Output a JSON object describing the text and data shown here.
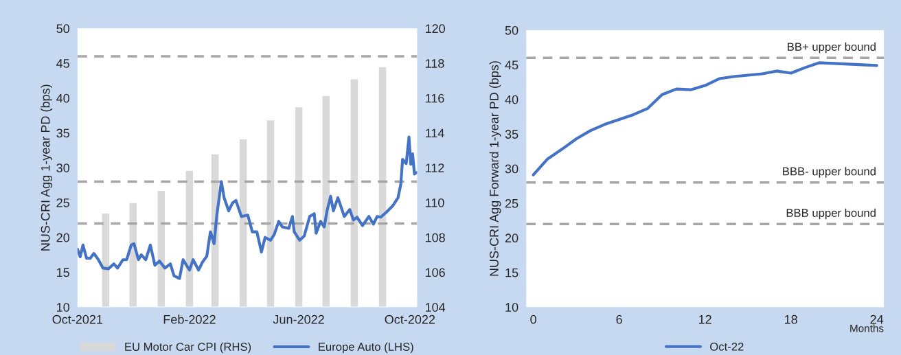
{
  "chart_data": [
    {
      "type": "line",
      "ylabel": "NUS-CRI Agg 1-year PD (bps)",
      "xlim": [
        "2021-10-01",
        "2022-10-09"
      ],
      "xticks": [
        {
          "value": "2021-10-01",
          "label": "Oct-2021"
        },
        {
          "value": "2022-02-01",
          "label": "Feb-2022"
        },
        {
          "value": "2022-06-01",
          "label": "Jun-2022"
        },
        {
          "value": "2022-10-01",
          "label": "Oct-2022"
        }
      ],
      "ylim": [
        10,
        50
      ],
      "yticks": [
        10,
        15,
        20,
        25,
        30,
        35,
        40,
        45,
        50
      ],
      "y2lim": [
        104,
        120
      ],
      "y2ticks": [
        104,
        106,
        108,
        110,
        112,
        114,
        116,
        118,
        120
      ],
      "legend": "bottom",
      "series": [
        {
          "name": "EU Motor Car CPI (RHS)",
          "type": "bar",
          "axis": "y2",
          "color": "#d9d9d9",
          "x": [
            "2021-11-01",
            "2021-12-01",
            "2022-01-01",
            "2022-02-01",
            "2022-03-01",
            "2022-04-01",
            "2022-05-01",
            "2022-06-01",
            "2022-07-01",
            "2022-08-01",
            "2022-09-01"
          ],
          "values": [
            109.4,
            110.0,
            110.7,
            111.85,
            112.8,
            113.65,
            114.75,
            115.5,
            116.15,
            117.1,
            117.8
          ]
        },
        {
          "name": "Europe Auto (LHS)",
          "type": "line",
          "axis": "y",
          "color": "#4472c4",
          "x": [
            "2021-10-01",
            "2021-10-04",
            "2021-10-07",
            "2021-10-11",
            "2021-10-15",
            "2021-10-19",
            "2021-10-24",
            "2021-10-29",
            "2021-11-04",
            "2021-11-10",
            "2021-11-14",
            "2021-11-20",
            "2021-11-24",
            "2021-11-29",
            "2021-12-02",
            "2021-12-07",
            "2021-12-10",
            "2021-12-15",
            "2021-12-20",
            "2021-12-25",
            "2021-12-30",
            "2022-01-05",
            "2022-01-11",
            "2022-01-15",
            "2022-01-21",
            "2022-01-25",
            "2022-02-01",
            "2022-02-05",
            "2022-02-11",
            "2022-02-15",
            "2022-02-20",
            "2022-02-24",
            "2022-02-28",
            "2022-03-03",
            "2022-03-08",
            "2022-03-11",
            "2022-03-16",
            "2022-03-20",
            "2022-03-24",
            "2022-03-30",
            "2022-04-06",
            "2022-04-11",
            "2022-04-16",
            "2022-04-21",
            "2022-04-25",
            "2022-05-01",
            "2022-05-05",
            "2022-05-10",
            "2022-05-14",
            "2022-05-21",
            "2022-05-25",
            "2022-05-27",
            "2022-06-02",
            "2022-06-07",
            "2022-06-13",
            "2022-06-18",
            "2022-06-20",
            "2022-06-25",
            "2022-06-29",
            "2022-07-02",
            "2022-07-06",
            "2022-07-09",
            "2022-07-14",
            "2022-07-21",
            "2022-07-27",
            "2022-07-31",
            "2022-08-04",
            "2022-08-10",
            "2022-08-17",
            "2022-08-22",
            "2022-08-26",
            "2022-08-30",
            "2022-09-05",
            "2022-09-12",
            "2022-09-18",
            "2022-09-21",
            "2022-09-23",
            "2022-09-27",
            "2022-09-30",
            "2022-10-02",
            "2022-10-04",
            "2022-10-06",
            "2022-10-08"
          ],
          "values": [
            18.3,
            17.2,
            18.9,
            17.0,
            17.0,
            17.7,
            16.8,
            15.6,
            15.5,
            16.2,
            15.6,
            16.8,
            16.8,
            18.9,
            19.1,
            16.8,
            17.5,
            16.8,
            18.9,
            16.0,
            16.6,
            15.6,
            16.2,
            14.5,
            14.1,
            16.8,
            15.3,
            16.8,
            15.3,
            16.4,
            17.3,
            20.8,
            19.1,
            23.2,
            28.0,
            25.7,
            23.8,
            24.9,
            25.3,
            23.0,
            23.2,
            20.8,
            20.8,
            17.9,
            20.0,
            19.6,
            20.4,
            22.3,
            21.5,
            21.3,
            23.0,
            20.8,
            19.6,
            20.2,
            23.0,
            23.4,
            20.6,
            22.3,
            21.5,
            23.8,
            25.9,
            23.8,
            25.7,
            23.0,
            24.0,
            22.5,
            22.9,
            21.7,
            23.0,
            21.9,
            23.0,
            22.9,
            23.6,
            24.5,
            25.7,
            27.6,
            31.2,
            30.6,
            34.4,
            30.5,
            32.0,
            29.1,
            29.3
          ]
        }
      ],
      "ref_lines": [
        {
          "axis": "y",
          "value": 46,
          "color": "#a6a6a6",
          "line_style": "dashed"
        },
        {
          "axis": "y",
          "value": 28,
          "color": "#a6a6a6",
          "line_style": "dashed"
        },
        {
          "axis": "y",
          "value": 22,
          "color": "#a6a6a6",
          "line_style": "dashed"
        }
      ]
    },
    {
      "type": "line",
      "ylabel": "NUS-CRI Agg Forward 1-year PD (bps)",
      "xlabel": "Months",
      "xlim": [
        -0.5,
        24.5
      ],
      "xticks": [
        0,
        6,
        12,
        18,
        24
      ],
      "ylim": [
        10,
        50
      ],
      "yticks": [
        10,
        15,
        20,
        25,
        30,
        35,
        40,
        45,
        50
      ],
      "legend": "bottom",
      "series": [
        {
          "name": "Oct-22",
          "color": "#4472c4",
          "x": [
            0,
            1,
            2,
            3,
            4,
            5,
            6,
            7,
            8,
            9,
            10,
            11,
            12,
            13,
            14,
            15,
            16,
            17,
            18,
            19,
            20,
            22,
            24
          ],
          "values": [
            29.1,
            31.4,
            32.8,
            34.3,
            35.5,
            36.4,
            37.1,
            37.8,
            38.7,
            40.7,
            41.5,
            41.4,
            42.0,
            43.0,
            43.3,
            43.5,
            43.7,
            44.1,
            43.8,
            44.6,
            45.3,
            45.1,
            44.9
          ]
        }
      ],
      "ref_lines": [
        {
          "axis": "y",
          "value": 46,
          "label": "BB+ upper bound",
          "color": "#a6a6a6",
          "line_style": "dashed"
        },
        {
          "axis": "y",
          "value": 28,
          "label": "BBB- upper bound",
          "color": "#a6a6a6",
          "line_style": "dashed"
        },
        {
          "axis": "y",
          "value": 22,
          "label": "BBB upper bound",
          "color": "#a6a6a6",
          "line_style": "dashed"
        }
      ]
    }
  ]
}
